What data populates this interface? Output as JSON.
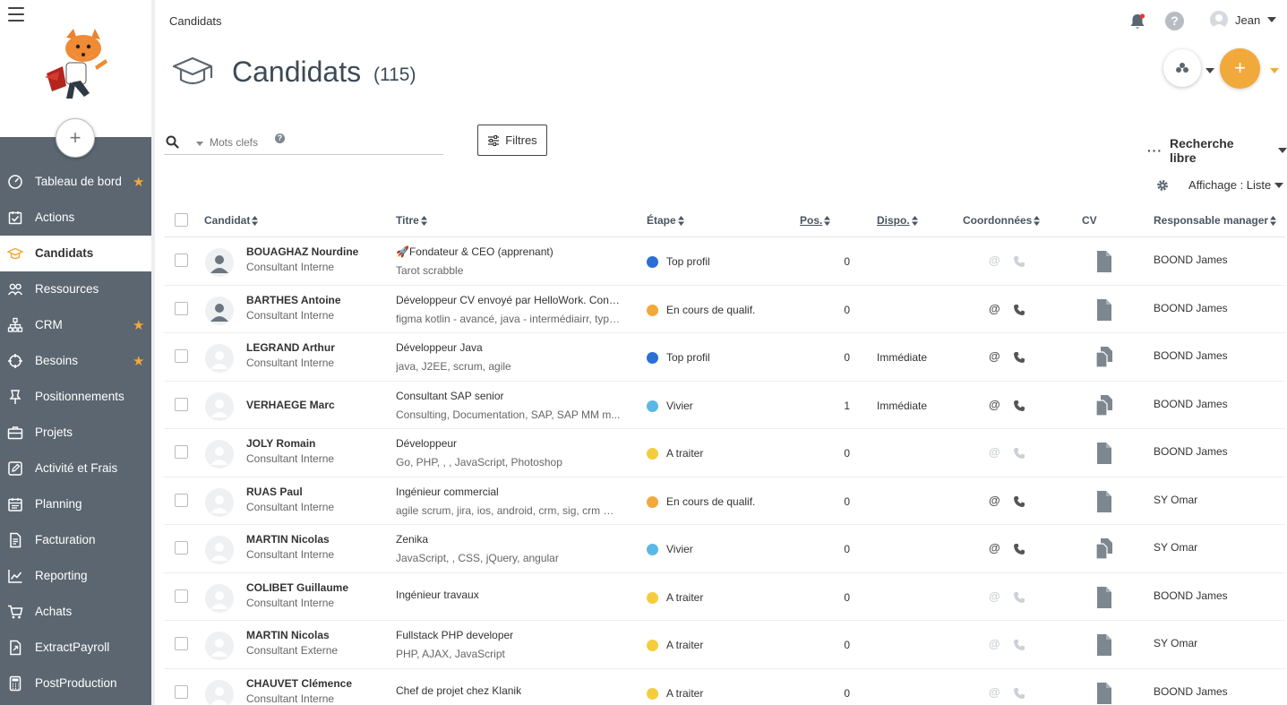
{
  "sidebar": {
    "add_label": "+",
    "items": [
      {
        "label": "Tableau de bord",
        "icon": "dashboard-icon",
        "starred": true
      },
      {
        "label": "Actions",
        "icon": "actions-icon",
        "starred": false
      },
      {
        "label": "Candidats",
        "icon": "graduation-cap-icon",
        "starred": false,
        "active": true
      },
      {
        "label": "Ressources",
        "icon": "people-icon",
        "starred": false
      },
      {
        "label": "CRM",
        "icon": "org-chart-icon",
        "starred": true
      },
      {
        "label": "Besoins",
        "icon": "crosshair-icon",
        "starred": true
      },
      {
        "label": "Positionnements",
        "icon": "pin-icon",
        "starred": false
      },
      {
        "label": "Projets",
        "icon": "briefcase-icon",
        "starred": false
      },
      {
        "label": "Activité et Frais",
        "icon": "edit-icon",
        "starred": false
      },
      {
        "label": "Planning",
        "icon": "calendar-icon",
        "starred": false
      },
      {
        "label": "Facturation",
        "icon": "invoice-icon",
        "starred": false
      },
      {
        "label": "Reporting",
        "icon": "chart-icon",
        "starred": false
      },
      {
        "label": "Achats",
        "icon": "cart-icon",
        "starred": false
      },
      {
        "label": "ExtractPayroll",
        "icon": "export-icon",
        "starred": false
      },
      {
        "label": "PostProduction",
        "icon": "calculator-icon",
        "starred": false
      }
    ]
  },
  "topbar": {
    "breadcrumb": "Candidats",
    "help": "?",
    "user_name": "Jean"
  },
  "header": {
    "title": "Candidats",
    "count": "(115)",
    "plus": "+"
  },
  "toolbar": {
    "search_placeholder": "Mots clefs",
    "help_mark": "?",
    "filters_label": "Filtres",
    "dots": "···",
    "free_search_label": "Recherche libre",
    "display_label": "Affichage : Liste"
  },
  "table": {
    "headers": {
      "candidat": "Candidat",
      "titre": "Titre",
      "etape": "Étape",
      "pos": "Pos.",
      "dispo": "Dispo.",
      "coordonnees": "Coordonnées",
      "cv": "CV",
      "manager": "Responsable manager"
    },
    "email_symbol": "@",
    "stage_colors": {
      "Top profil": "#2a6fd6",
      "En cours de qualif.": "#f2a93b",
      "Vivier": "#5bb8e6",
      "A traiter": "#f5cd3c"
    },
    "rows": [
      {
        "name": "BOUAGHAZ Nourdine",
        "type": "Consultant Interne",
        "title": "🚀Fondateur & CEO (apprenant)",
        "tags": "Tarot scrabble",
        "etape": "Top profil",
        "pos": "0",
        "dispo": "",
        "contact_active": false,
        "cv_multi": false,
        "manager": "BOOND James"
      },
      {
        "name": "BARTHES Antoine",
        "type": "Consultant Interne",
        "title": "Développeur CV envoyé par HelloWork. Conti...",
        "tags": "figma kotlin - avancé, java - intermédiairr, type...",
        "etape": "En cours de qualif.",
        "pos": "0",
        "dispo": "",
        "contact_active": true,
        "cv_multi": false,
        "manager": "BOOND James"
      },
      {
        "name": "LEGRAND Arthur",
        "type": "Consultant Interne",
        "title": "Développeur Java",
        "tags": "java, J2EE, scrum, agile",
        "etape": "Top profil",
        "pos": "0",
        "dispo": "Immédiate",
        "contact_active": true,
        "cv_multi": true,
        "manager": "BOOND James"
      },
      {
        "name": "VERHAEGE Marc",
        "type": "",
        "title": "Consultant SAP senior",
        "tags": "Consulting, Documentation, SAP, SAP MM m...",
        "etape": "Vivier",
        "pos": "1",
        "dispo": "Immédiate",
        "contact_active": true,
        "cv_multi": true,
        "manager": "BOOND James"
      },
      {
        "name": "JOLY Romain",
        "type": "Consultant Interne",
        "title": "Développeur",
        "tags": "Go, PHP, , , JavaScript, Photoshop",
        "etape": "A traiter",
        "pos": "0",
        "dispo": "",
        "contact_active": false,
        "cv_multi": false,
        "manager": "BOOND James"
      },
      {
        "name": "RUAS Paul",
        "type": "Consultant Interne",
        "title": "Ingénieur commercial",
        "tags": "agile scrum, jira, ios, android, crm, sig, crm mi...",
        "etape": "En cours de qualif.",
        "pos": "0",
        "dispo": "",
        "contact_active": true,
        "cv_multi": false,
        "manager": "SY Omar"
      },
      {
        "name": "MARTIN Nicolas",
        "type": "Consultant Interne",
        "title": "Zenika",
        "tags": "JavaScript, , CSS, jQuery, angular",
        "etape": "Vivier",
        "pos": "0",
        "dispo": "",
        "contact_active": true,
        "cv_multi": true,
        "manager": "SY Omar"
      },
      {
        "name": "COLIBET Guillaume",
        "type": "Consultant Interne",
        "title": "Ingénieur travaux",
        "tags": "",
        "etape": "A traiter",
        "pos": "0",
        "dispo": "",
        "contact_active": false,
        "cv_multi": false,
        "manager": "BOOND James"
      },
      {
        "name": "MARTIN Nicolas",
        "type": "Consultant Externe",
        "title": "Fullstack PHP developer",
        "tags": "PHP, AJAX, JavaScript",
        "etape": "A traiter",
        "pos": "0",
        "dispo": "",
        "contact_active": false,
        "cv_multi": false,
        "manager": "SY Omar"
      },
      {
        "name": "CHAUVET Clémence",
        "type": "Consultant Interne",
        "title": "Chef de projet chez Klanik",
        "tags": "",
        "etape": "A traiter",
        "pos": "0",
        "dispo": "",
        "contact_active": false,
        "cv_multi": false,
        "manager": "BOOND James"
      }
    ]
  }
}
